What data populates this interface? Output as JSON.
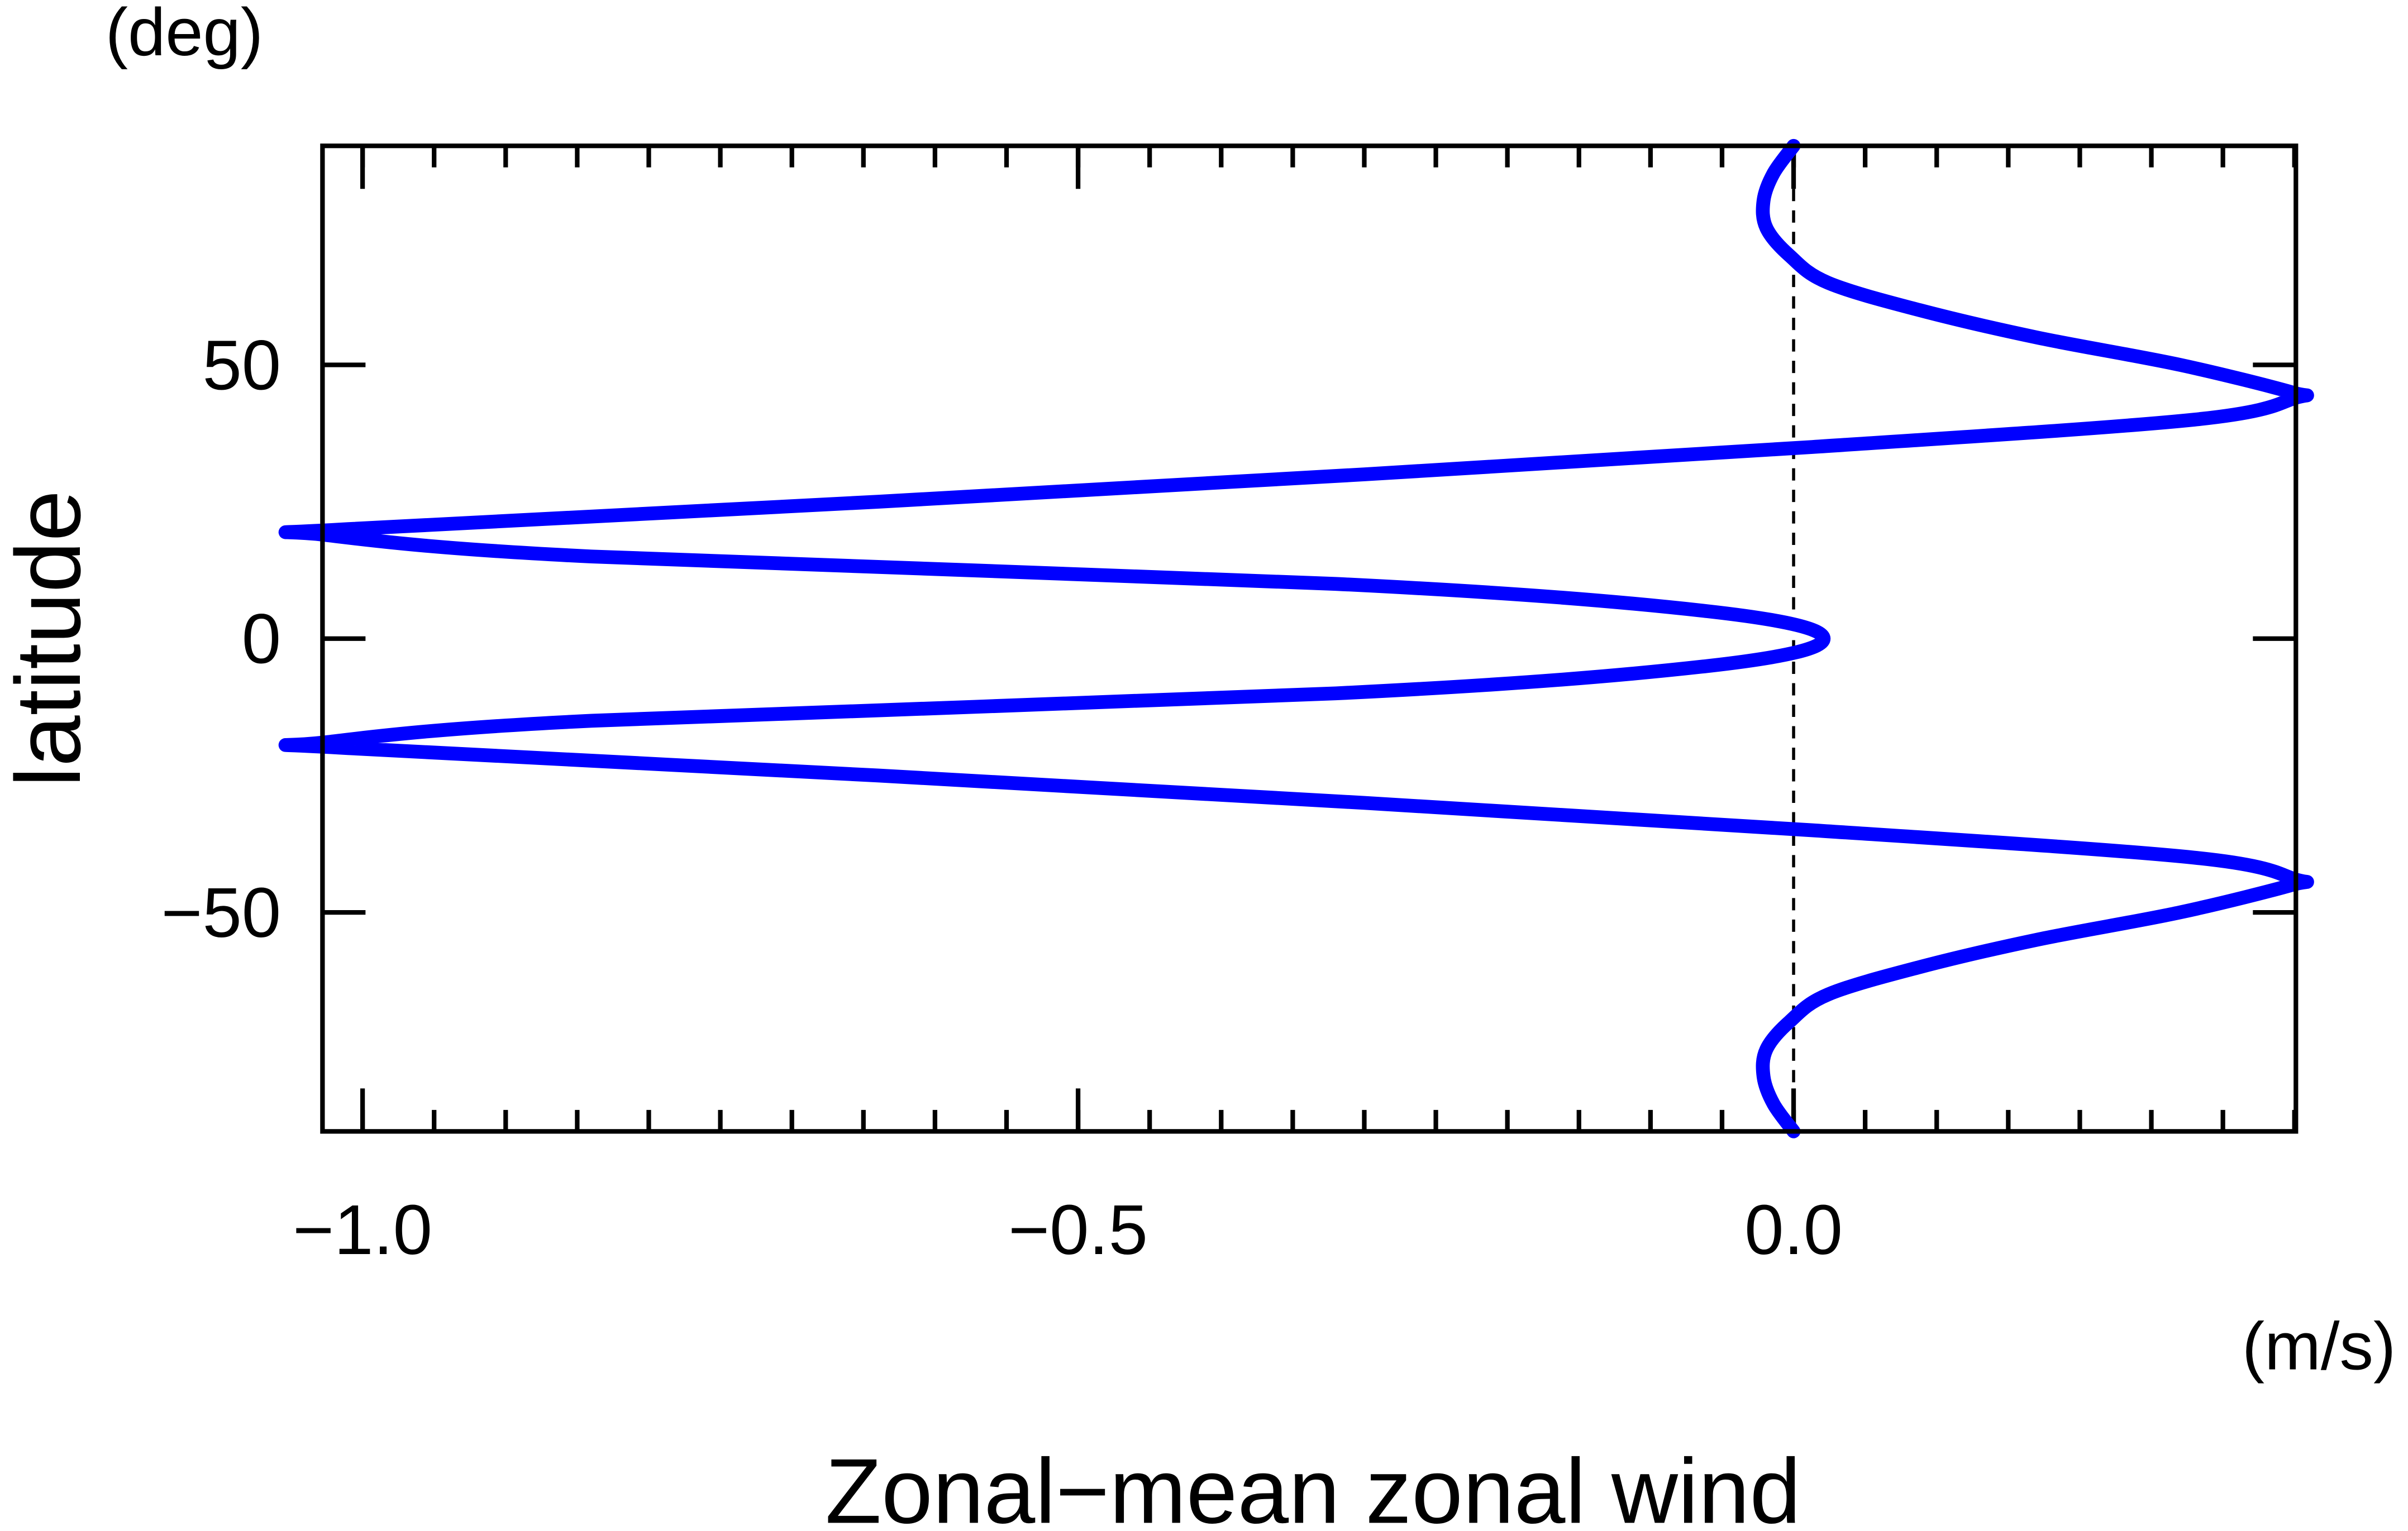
{
  "chart_data": {
    "type": "line",
    "xlabel": "Zonal−mean zonal wind",
    "ylabel": "latitude",
    "x_unit": "(m/s)",
    "y_unit": "(deg)",
    "latitude": [
      90,
      85,
      80,
      75,
      70,
      65,
      60,
      55,
      50,
      45,
      44,
      40,
      35,
      30,
      25,
      20,
      19,
      15,
      10,
      5,
      0,
      -5,
      -10,
      -15,
      -19,
      -20,
      -25,
      -30,
      -35,
      -40,
      -44,
      -45,
      -50,
      -55,
      -60,
      -65,
      -70,
      -75,
      -80,
      -85,
      -90
    ],
    "series": [
      {
        "color": "#0000ff",
        "values": [
          0,
          -0.014,
          -0.021,
          -0.019,
          -0.003,
          0.024,
          0.088,
          0.17,
          0.27,
          0.348,
          0.351,
          0.28,
          0.013,
          -0.3,
          -0.64,
          -1.01,
          -1.028,
          -0.84,
          -0.32,
          -0.06,
          0.021,
          -0.06,
          -0.32,
          -0.84,
          -1.028,
          -1.01,
          -0.64,
          -0.3,
          0.013,
          0.28,
          0.351,
          0.348,
          0.27,
          0.17,
          0.088,
          0.024,
          -0.003,
          -0.019,
          -0.021,
          -0.014,
          0
        ]
      }
    ],
    "xlim": [
      -1.028,
      0.351
    ],
    "ylim": [
      -90,
      90
    ],
    "xticks": [
      {
        "value": -1.0,
        "label": "−1.0"
      },
      {
        "value": -0.5,
        "label": "−0.5"
      },
      {
        "value": 0,
        "label": "0.0"
      }
    ],
    "xminorticks": [
      -1.0,
      -0.95,
      -0.9,
      -0.85,
      -0.8,
      -0.75,
      -0.7,
      -0.65,
      -0.6,
      -0.55,
      -0.5,
      -0.45,
      -0.4,
      -0.35,
      -0.3,
      -0.25,
      -0.2,
      -0.15,
      -0.1,
      -0.05,
      0,
      0.05,
      0.1,
      0.15,
      0.2,
      0.25,
      0.3,
      0.35
    ],
    "yticks": [
      {
        "value": -50,
        "label": "−50"
      },
      0,
      50
    ],
    "reference_line": 0
  }
}
